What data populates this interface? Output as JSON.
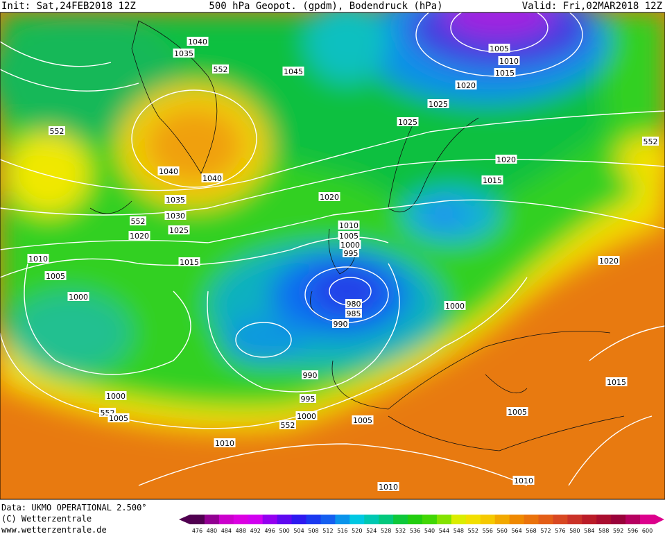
{
  "header": {
    "init": "Init: Sat,24FEB2018 12Z",
    "title": "500 hPa Geopot. (gpdm), Bodendruck (hPa)",
    "valid": "Valid: Fri,02MAR2018 12Z"
  },
  "contour_labels": [
    "1040",
    "1035",
    "552",
    "1045",
    "552",
    "1040",
    "1040",
    "1035",
    "1030",
    "552",
    "1025",
    "1020",
    "1020",
    "1010",
    "1005",
    "1000",
    "1015",
    "1010",
    "1005",
    "1000",
    "995",
    "980",
    "985",
    "990",
    "990",
    "995",
    "1000",
    "552",
    "1005",
    "1000",
    "552",
    "1005",
    "1010",
    "1010",
    "1005",
    "1010",
    "1015",
    "1020",
    "1000",
    "552",
    "1020",
    "1015",
    "1025",
    "1025",
    "1020",
    "1005",
    "1010",
    "1015"
  ],
  "footer": {
    "data": "Data: UKMO OPERATIONAL 2.500°",
    "copyright": "(C) Wetterzentrale",
    "url": "www.wetterzentrale.de"
  },
  "colorbar": [
    "476",
    "480",
    "484",
    "488",
    "492",
    "496",
    "500",
    "504",
    "508",
    "512",
    "516",
    "520",
    "524",
    "528",
    "532",
    "536",
    "540",
    "544",
    "548",
    "552",
    "556",
    "560",
    "564",
    "568",
    "572",
    "576",
    "580",
    "584",
    "588",
    "592",
    "596",
    "600"
  ]
}
